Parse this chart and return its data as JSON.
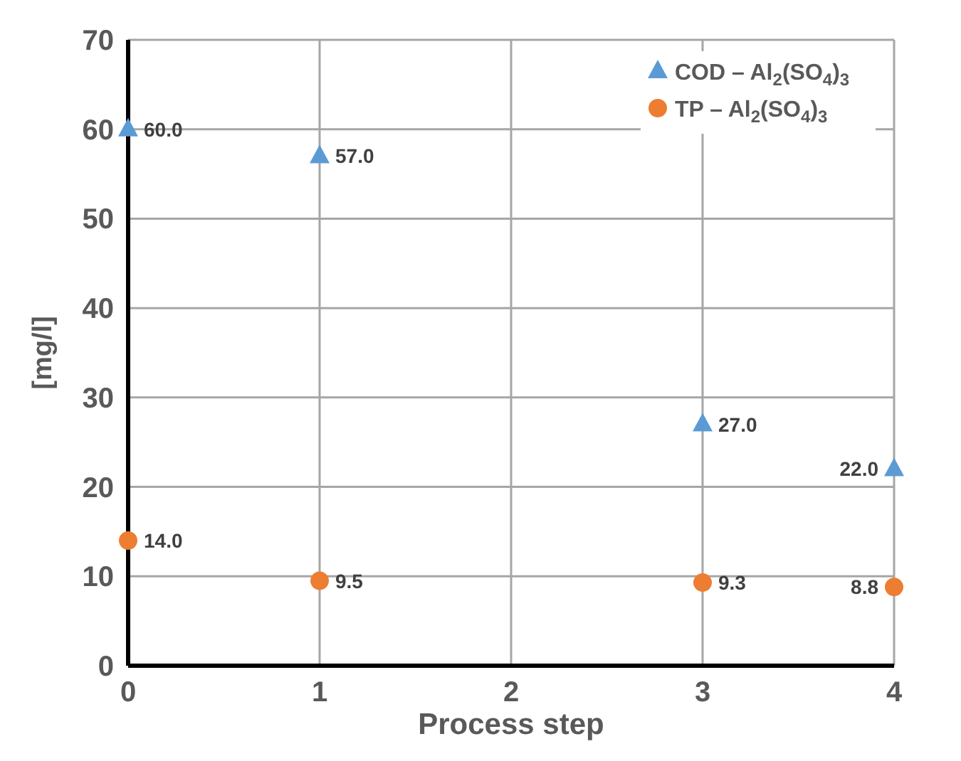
{
  "chart_data": {
    "type": "scatter",
    "xlabel": "Process step",
    "ylabel": "[mg/l]",
    "x": [
      0,
      1,
      3,
      4
    ],
    "xlim": [
      0,
      4
    ],
    "xticks": [
      0,
      1,
      2,
      3,
      4
    ],
    "ylim": [
      0,
      70
    ],
    "yticks": [
      0,
      10,
      20,
      30,
      40,
      50,
      60,
      70
    ],
    "grid": true,
    "legend": "top right",
    "series": [
      {
        "name": "COD – Al$_{2}$(SO$_{4}$)$_{3}$",
        "color": "#5b9bd5",
        "marker": "triangle",
        "values": [
          60,
          57,
          27,
          22
        ],
        "value_labels": [
          "60.0",
          "57.0",
          "27.0",
          "22.0"
        ]
      },
      {
        "name": "TP – Al$_{2}$(SO$_{4}$)$_{3}$",
        "color": "#ed7d31",
        "marker": "circle",
        "values": [
          14,
          9.5,
          9.3,
          8.8
        ],
        "value_labels": [
          "14.0",
          "9.5",
          "9.3",
          "8.8"
        ]
      }
    ]
  }
}
